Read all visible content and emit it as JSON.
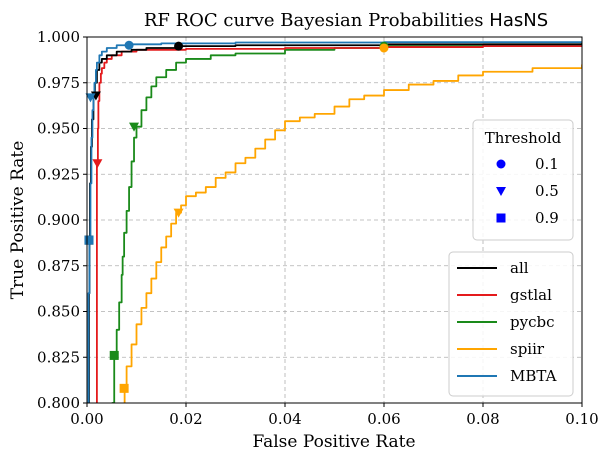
{
  "chart_data": {
    "type": "line",
    "title_prefix": "RF ROC curve Bayesian Probabilities ",
    "title_code": "HasNS",
    "xlabel": "False Positive Rate",
    "ylabel": "True Positive Rate",
    "xlim": [
      0.0,
      0.1
    ],
    "ylim": [
      0.8,
      1.0
    ],
    "xticks": [
      "0.00",
      "0.02",
      "0.04",
      "0.06",
      "0.08",
      "0.10"
    ],
    "xtick_values": [
      0.0,
      0.02,
      0.04,
      0.06,
      0.08,
      0.1
    ],
    "yticks": [
      "0.800",
      "0.825",
      "0.850",
      "0.875",
      "0.900",
      "0.925",
      "0.950",
      "0.975",
      "1.000"
    ],
    "ytick_values": [
      0.8,
      0.825,
      0.85,
      0.875,
      0.9,
      0.925,
      0.95,
      0.975,
      1.0
    ],
    "grid": true,
    "series": [
      {
        "name": "all",
        "color": "#000000",
        "x": [
          0.0002,
          0.0004,
          0.0005,
          0.0006,
          0.0008,
          0.001,
          0.0013,
          0.0016,
          0.002,
          0.0025,
          0.003,
          0.004,
          0.006,
          0.009,
          0.012,
          0.018,
          0.03,
          0.06,
          0.1
        ],
        "y": [
          0.8,
          0.86,
          0.889,
          0.92,
          0.94,
          0.955,
          0.967,
          0.975,
          0.982,
          0.986,
          0.988,
          0.99,
          0.992,
          0.993,
          0.994,
          0.995,
          0.9955,
          0.996,
          0.9965
        ],
        "markers": [
          {
            "threshold": "0.1",
            "x": 0.0185,
            "y": 0.995
          },
          {
            "threshold": "0.5",
            "x": 0.0018,
            "y": 0.968
          },
          {
            "threshold": "0.9",
            "x": 0.0004,
            "y": 0.889
          }
        ]
      },
      {
        "name": "gstlal",
        "color": "#e41a1c",
        "x": [
          0.002,
          0.002,
          0.0022,
          0.0023,
          0.0025,
          0.0028,
          0.003,
          0.0035,
          0.004,
          0.005,
          0.007,
          0.01,
          0.02,
          0.04,
          0.06,
          0.08,
          0.1
        ],
        "y": [
          0.8,
          0.931,
          0.95,
          0.965,
          0.975,
          0.98,
          0.983,
          0.986,
          0.988,
          0.99,
          0.992,
          0.993,
          0.9935,
          0.994,
          0.9945,
          0.995,
          0.9955
        ],
        "markers": [
          {
            "threshold": "0.5",
            "x": 0.0021,
            "y": 0.931
          }
        ]
      },
      {
        "name": "pycbc",
        "color": "#1a8a1a",
        "x": [
          0.005,
          0.0055,
          0.006,
          0.0065,
          0.007,
          0.0072,
          0.0075,
          0.008,
          0.0085,
          0.009,
          0.0095,
          0.01,
          0.011,
          0.012,
          0.013,
          0.014,
          0.016,
          0.018,
          0.02,
          0.025,
          0.03,
          0.04,
          0.05,
          0.06,
          0.08,
          0.1
        ],
        "y": [
          0.8,
          0.826,
          0.84,
          0.855,
          0.87,
          0.88,
          0.893,
          0.905,
          0.918,
          0.932,
          0.945,
          0.951,
          0.96,
          0.967,
          0.973,
          0.978,
          0.982,
          0.986,
          0.988,
          0.99,
          0.991,
          0.993,
          0.994,
          0.995,
          0.996,
          0.997
        ],
        "markers": [
          {
            "threshold": "0.1",
            "x": 0.06,
            "y": 0.995
          },
          {
            "threshold": "0.5",
            "x": 0.0095,
            "y": 0.951
          },
          {
            "threshold": "0.9",
            "x": 0.0055,
            "y": 0.826
          }
        ]
      },
      {
        "name": "spiir",
        "color": "#ffa500",
        "x": [
          0.0075,
          0.0076,
          0.008,
          0.009,
          0.01,
          0.011,
          0.012,
          0.013,
          0.014,
          0.015,
          0.016,
          0.017,
          0.018,
          0.019,
          0.02,
          0.022,
          0.024,
          0.026,
          0.028,
          0.03,
          0.032,
          0.034,
          0.036,
          0.038,
          0.04,
          0.043,
          0.046,
          0.05,
          0.053,
          0.056,
          0.06,
          0.065,
          0.07,
          0.075,
          0.08,
          0.09,
          0.1
        ],
        "y": [
          0.8,
          0.808,
          0.82,
          0.832,
          0.843,
          0.852,
          0.86,
          0.868,
          0.877,
          0.885,
          0.891,
          0.898,
          0.904,
          0.908,
          0.913,
          0.915,
          0.918,
          0.923,
          0.926,
          0.931,
          0.934,
          0.939,
          0.944,
          0.949,
          0.954,
          0.956,
          0.958,
          0.962,
          0.966,
          0.968,
          0.971,
          0.974,
          0.976,
          0.979,
          0.981,
          0.983,
          0.985
        ],
        "markers": [
          {
            "threshold": "0.1",
            "x": 0.06,
            "y": 0.994
          },
          {
            "threshold": "0.5",
            "x": 0.0185,
            "y": 0.904
          },
          {
            "threshold": "0.9",
            "x": 0.0075,
            "y": 0.808
          }
        ]
      },
      {
        "name": "MBTA",
        "color": "#1f77b4",
        "x": [
          0.0001,
          0.0003,
          0.0005,
          0.0007,
          0.0009,
          0.0011,
          0.0013,
          0.0015,
          0.0018,
          0.002,
          0.0025,
          0.003,
          0.004,
          0.006,
          0.009,
          0.015,
          0.03,
          0.06,
          0.1
        ],
        "y": [
          0.8,
          0.86,
          0.89,
          0.92,
          0.945,
          0.96,
          0.968,
          0.975,
          0.982,
          0.986,
          0.99,
          0.992,
          0.994,
          0.9955,
          0.996,
          0.9965,
          0.997,
          0.9972,
          0.9975
        ],
        "markers": [
          {
            "threshold": "0.1",
            "x": 0.0085,
            "y": 0.9955
          },
          {
            "threshold": "0.5",
            "x": 0.0007,
            "y": 0.967
          },
          {
            "threshold": "0.9",
            "x": 0.0004,
            "y": 0.889
          }
        ]
      }
    ],
    "threshold_legend": {
      "title": "Threshold",
      "placement": "center-right",
      "color": "#0000ff",
      "entries": [
        {
          "label": "0.1",
          "marker": "circle"
        },
        {
          "label": "0.5",
          "marker": "triangle-down"
        },
        {
          "label": "0.9",
          "marker": "square"
        }
      ]
    },
    "series_legend": {
      "placement": "lower-right"
    }
  }
}
